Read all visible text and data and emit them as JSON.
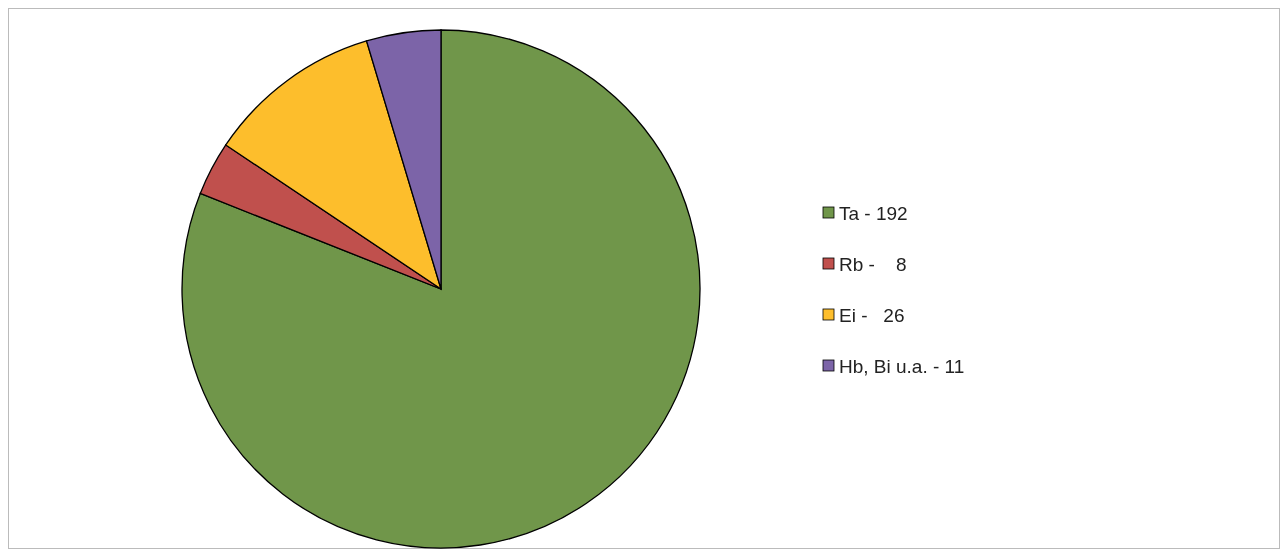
{
  "chart_data": {
    "type": "pie",
    "categories": [
      "Ta - 192",
      "Rb -    8",
      "Ei -   26",
      "Hb, Bi u.a. - 11"
    ],
    "values": [
      192,
      8,
      26,
      11
    ],
    "colors": [
      "#70964a",
      "#c0504d",
      "#fdbe2c",
      "#7c64a8"
    ],
    "legend": "right"
  }
}
